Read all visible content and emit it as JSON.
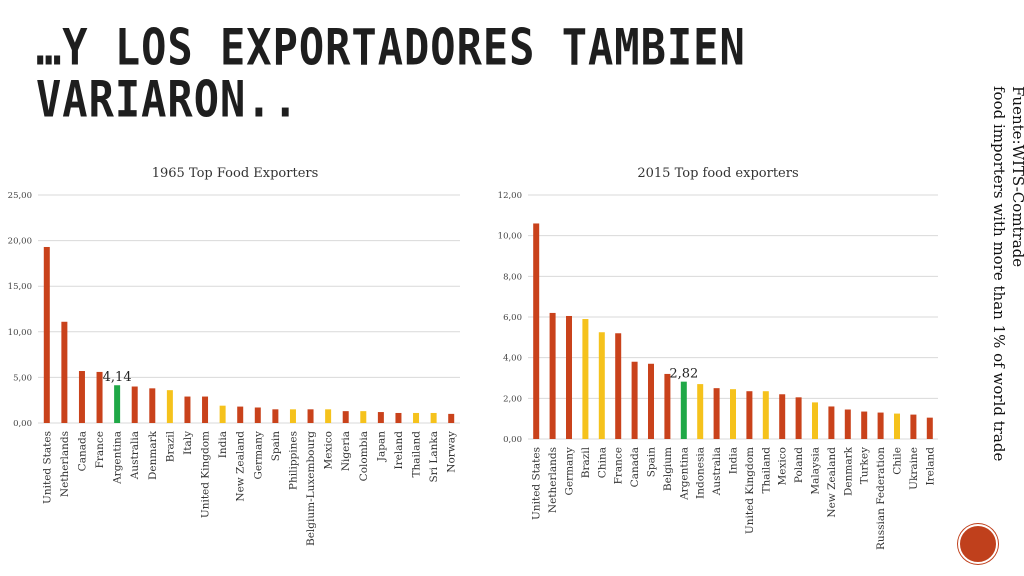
{
  "slide": {
    "title": "…Y LOS EXPORTADORES TAMBIEN VARIARON..",
    "source_line1": "Fuente:WITS-Comtrade",
    "source_line2": "food importers with more than 1% of world trade"
  },
  "colors": {
    "red": "#c9421b",
    "yellow": "#f5c21c",
    "green": "#1fa847"
  },
  "chart_data": [
    {
      "type": "bar",
      "title": "1965 Top Food Exporters",
      "ylim": [
        0,
        25
      ],
      "yticks": [
        "0,00",
        "5,00",
        "10,00",
        "15,00",
        "20,00",
        "25,00"
      ],
      "grid": true,
      "categories": [
        "United States",
        "Netherlands",
        "Canada",
        "France",
        "Argentina",
        "Australia",
        "Denmark",
        "Brazil",
        "Italy",
        "United Kingdom",
        "India",
        "New Zealand",
        "Germany",
        "Spain",
        "Philippines",
        "Belgium-Luxembourg",
        "Mexico",
        "Nigeria",
        "Colombia",
        "Japan",
        "Ireland",
        "Thailand",
        "Sri Lanka",
        "Norway"
      ],
      "values": [
        19.3,
        11.1,
        5.7,
        5.6,
        4.14,
        4.0,
        3.8,
        3.6,
        2.9,
        2.9,
        1.9,
        1.8,
        1.7,
        1.5,
        1.5,
        1.5,
        1.5,
        1.3,
        1.3,
        1.2,
        1.1,
        1.1,
        1.1,
        1.0
      ],
      "colors": [
        "red",
        "red",
        "red",
        "red",
        "green",
        "red",
        "red",
        "yellow",
        "red",
        "red",
        "yellow",
        "red",
        "red",
        "red",
        "yellow",
        "red",
        "yellow",
        "red",
        "yellow",
        "red",
        "red",
        "yellow",
        "yellow",
        "red"
      ],
      "annotation": {
        "index": 4,
        "text": "4,14"
      }
    },
    {
      "type": "bar",
      "title": "2015 Top food exporters",
      "ylim": [
        0,
        12
      ],
      "yticks": [
        "0,00",
        "2,00",
        "4,00",
        "6,00",
        "8,00",
        "10,00",
        "12,00"
      ],
      "grid": true,
      "categories": [
        "United States",
        "Netherlands",
        "Germany",
        "Brazil",
        "China",
        "France",
        "Canada",
        "Spain",
        "Belgium",
        "Argentina",
        "Indonesia",
        "Australia",
        "India",
        "United Kingdom",
        "Thailand",
        "Mexico",
        "Poland",
        "Malaysia",
        "New Zealand",
        "Denmark",
        "Turkey",
        "Russian Federation",
        "Chile",
        "Ukraine",
        "Ireland"
      ],
      "values": [
        10.6,
        6.2,
        6.05,
        5.9,
        5.25,
        5.2,
        3.8,
        3.7,
        3.2,
        2.82,
        2.7,
        2.5,
        2.45,
        2.35,
        2.35,
        2.2,
        2.05,
        1.8,
        1.6,
        1.45,
        1.35,
        1.3,
        1.25,
        1.2,
        1.05
      ],
      "colors": [
        "red",
        "red",
        "red",
        "yellow",
        "yellow",
        "red",
        "red",
        "red",
        "red",
        "green",
        "yellow",
        "red",
        "yellow",
        "red",
        "yellow",
        "red",
        "red",
        "yellow",
        "red",
        "red",
        "red",
        "red",
        "yellow",
        "red",
        "red"
      ],
      "annotation": {
        "index": 9,
        "text": "2,82"
      }
    }
  ]
}
